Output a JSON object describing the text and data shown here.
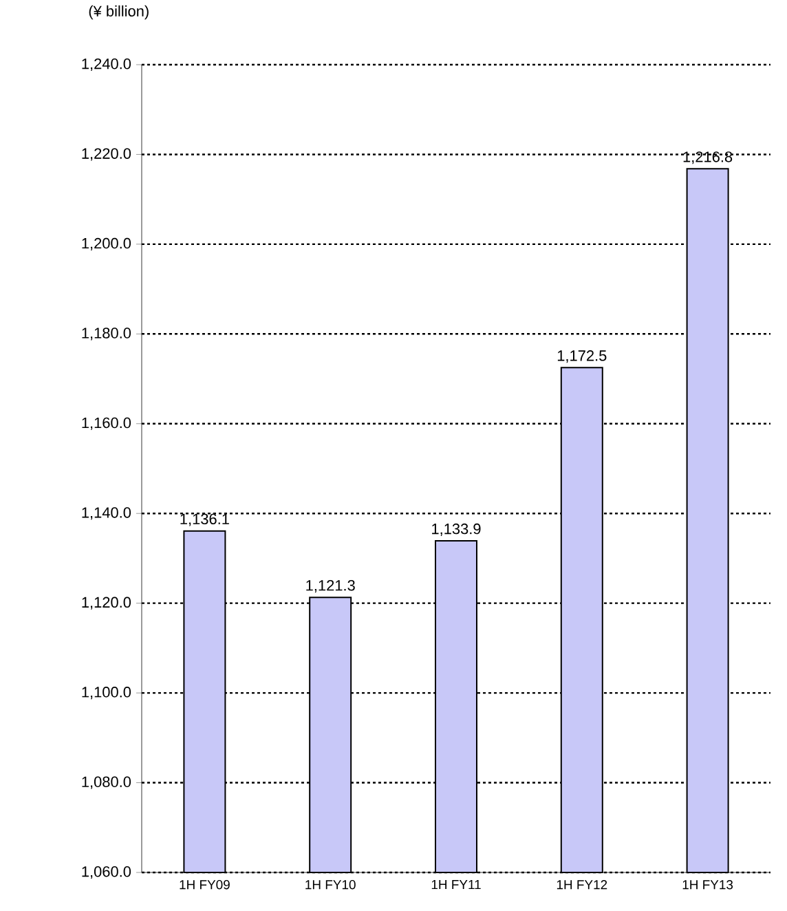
{
  "chart_data": {
    "type": "bar",
    "ylabel": "(¥ billion)",
    "categories": [
      "1H FY09",
      "1H FY10",
      "1H FY11",
      "1H FY12",
      "1H FY13"
    ],
    "values": [
      1136.1,
      1121.3,
      1133.9,
      1172.5,
      1216.8
    ],
    "value_labels": [
      "1,136.1",
      "1,121.3",
      "1,133.9",
      "1,172.5",
      "1,216.8"
    ],
    "color": "#c8c8f8",
    "ylim": [
      1060,
      1240
    ],
    "yticks": [
      {
        "value": 1060,
        "label": "1,060.0"
      },
      {
        "value": 1080,
        "label": "1,080.0"
      },
      {
        "value": 1100,
        "label": "1,100.0"
      },
      {
        "value": 1120,
        "label": "1,120.0"
      },
      {
        "value": 1140,
        "label": "1,140.0"
      },
      {
        "value": 1160,
        "label": "1,160.0"
      },
      {
        "value": 1180,
        "label": "1,180.0"
      },
      {
        "value": 1200,
        "label": "1,200.0"
      },
      {
        "value": 1220,
        "label": "1,220.0"
      },
      {
        "value": 1240,
        "label": "1,240.0"
      }
    ],
    "grid": "y"
  }
}
